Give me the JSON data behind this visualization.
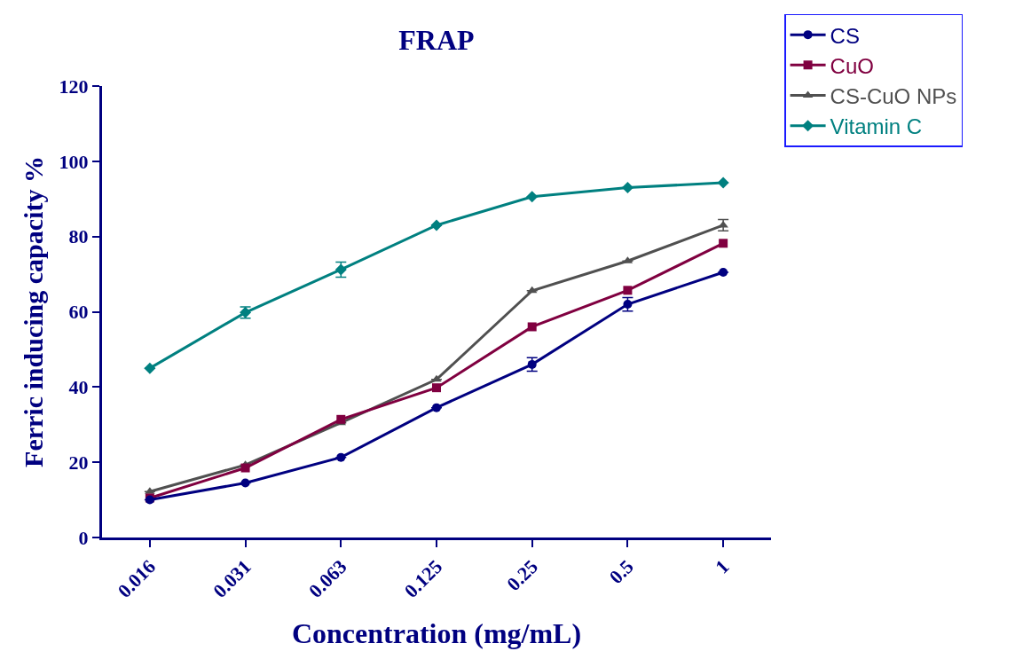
{
  "chart_data": {
    "type": "line",
    "title": "FRAP",
    "xlabel": "Concentration (mg/mL)",
    "ylabel": "Ferric inducing capacity %",
    "categories": [
      "0.016",
      "0.031",
      "0.063",
      "0.125",
      "0.25",
      "0.5",
      "1"
    ],
    "series": [
      {
        "name": "CS",
        "color": "#000080",
        "marker": "circle",
        "values": [
          10,
          14.5,
          21.3,
          34.5,
          46,
          62,
          70.5
        ],
        "errors": [
          null,
          null,
          null,
          null,
          1.8,
          1.8,
          null
        ]
      },
      {
        "name": "CuO",
        "color": "#800040",
        "marker": "square",
        "values": [
          10.5,
          18.5,
          31.4,
          39.8,
          56,
          65.7,
          78.2
        ],
        "errors": [
          null,
          null,
          null,
          null,
          null,
          null,
          null
        ]
      },
      {
        "name": "CS-CuO NPs",
        "color": "#505050",
        "marker": "triangle",
        "values": [
          12.2,
          19.3,
          30.5,
          42,
          65.6,
          73.5,
          83
        ],
        "errors": [
          null,
          null,
          null,
          null,
          null,
          null,
          1.5
        ]
      },
      {
        "name": "Vitamin C",
        "color": "#008080",
        "marker": "diamond",
        "values": [
          45,
          59.8,
          71.2,
          83,
          90.6,
          93,
          94.3
        ],
        "errors": [
          null,
          1.5,
          2,
          null,
          null,
          null,
          null
        ]
      }
    ],
    "ylim": [
      0,
      120
    ],
    "yticks": [
      0,
      20,
      40,
      60,
      80,
      100,
      120
    ],
    "grid": false,
    "legend": "top right",
    "line_style": "solid"
  }
}
